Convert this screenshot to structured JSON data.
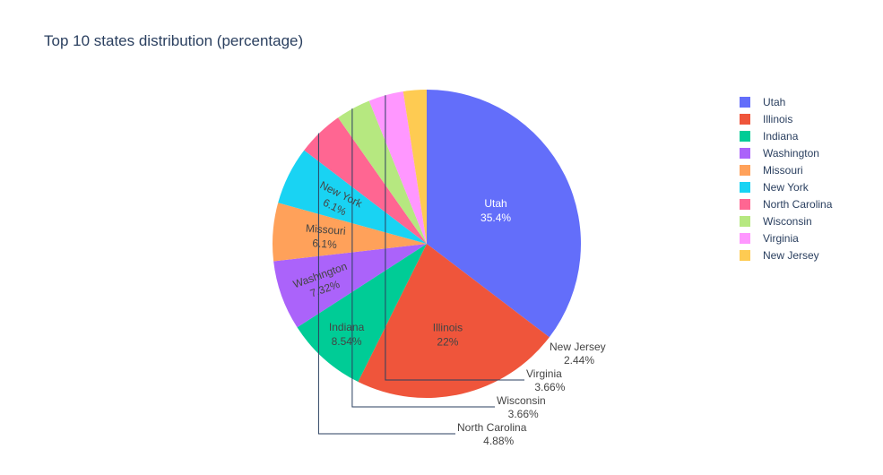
{
  "chart_data": {
    "type": "pie",
    "title": "Top 10 states distribution (percentage)",
    "categories": [
      "Utah",
      "Illinois",
      "Indiana",
      "Washington",
      "Missouri",
      "New York",
      "North Carolina",
      "Wisconsin",
      "Virginia",
      "New Jersey"
    ],
    "values": [
      35.4,
      22,
      8.54,
      7.32,
      6.1,
      6.1,
      4.88,
      3.66,
      3.66,
      2.44
    ],
    "value_labels": [
      "35.4%",
      "22%",
      "8.54%",
      "7.32%",
      "6.1%",
      "6.1%",
      "4.88%",
      "3.66%",
      "3.66%",
      "2.44%"
    ],
    "colors": [
      "#636efa",
      "#EF553B",
      "#00cc96",
      "#ab63fa",
      "#FFA15A",
      "#19d3f3",
      "#FF6692",
      "#B6E880",
      "#FF97FF",
      "#FECB52"
    ],
    "legend_position": "top-right",
    "direction": "clockwise",
    "start_angle": "top"
  }
}
